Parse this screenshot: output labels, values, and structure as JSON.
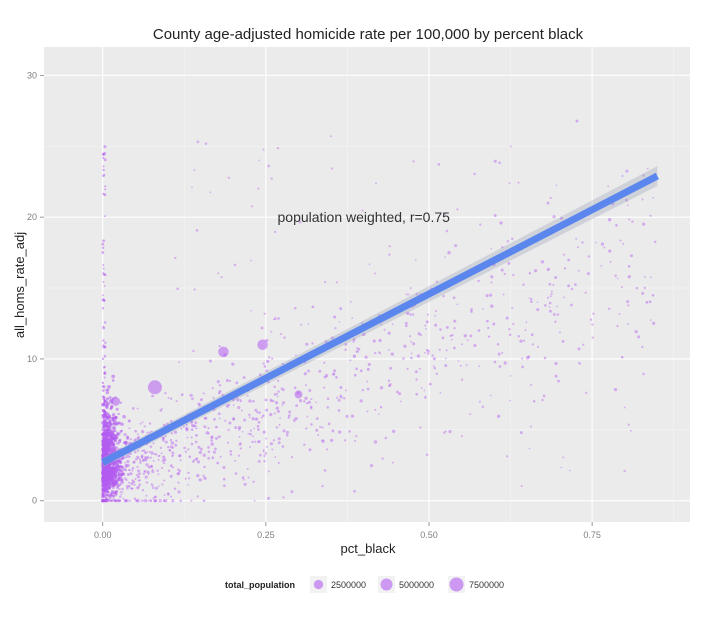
{
  "chart_data": {
    "type": "scatter",
    "title": "County age-adjusted homicide rate per 100,000 by percent black",
    "xlabel": "pct_black",
    "ylabel": "all_homs_rate_adj",
    "xlim": [
      -0.09,
      0.9
    ],
    "ylim": [
      -1.5,
      32
    ],
    "x_ticks": [
      0.0,
      0.25,
      0.5,
      0.75
    ],
    "x_tick_labels": [
      "0.00",
      "0.25",
      "0.50",
      "0.75"
    ],
    "y_ticks": [
      0,
      10,
      20,
      30
    ],
    "y_tick_labels": [
      "0",
      "10",
      "20",
      "30"
    ],
    "grid": true,
    "background": "#ebebeb",
    "point_color": "#b35cf0",
    "line_color": "#5a86ee",
    "annotation": {
      "text": "population weighted, r=0.75",
      "x": 0.4,
      "y": 20
    },
    "regression": {
      "x": [
        0.0,
        0.85
      ],
      "y": [
        2.7,
        22.9
      ]
    },
    "legend": {
      "title": "total_population",
      "position": "bottom",
      "entries": [
        {
          "label": "2500000",
          "size": 2500000
        },
        {
          "label": "5000000",
          "size": 5000000
        },
        {
          "label": "7500000",
          "size": 7500000
        }
      ]
    },
    "large_points": [
      {
        "x": 0.08,
        "y": 8.0,
        "pop": 7500000
      },
      {
        "x": 0.185,
        "y": 10.5,
        "pop": 3500000
      },
      {
        "x": 0.245,
        "y": 11.0,
        "pop": 3500000
      },
      {
        "x": 0.02,
        "y": 7.0,
        "pop": 2000000
      },
      {
        "x": 0.005,
        "y": 4.0,
        "pop": 2000000
      },
      {
        "x": 0.3,
        "y": 7.5,
        "pop": 1500000
      }
    ]
  }
}
